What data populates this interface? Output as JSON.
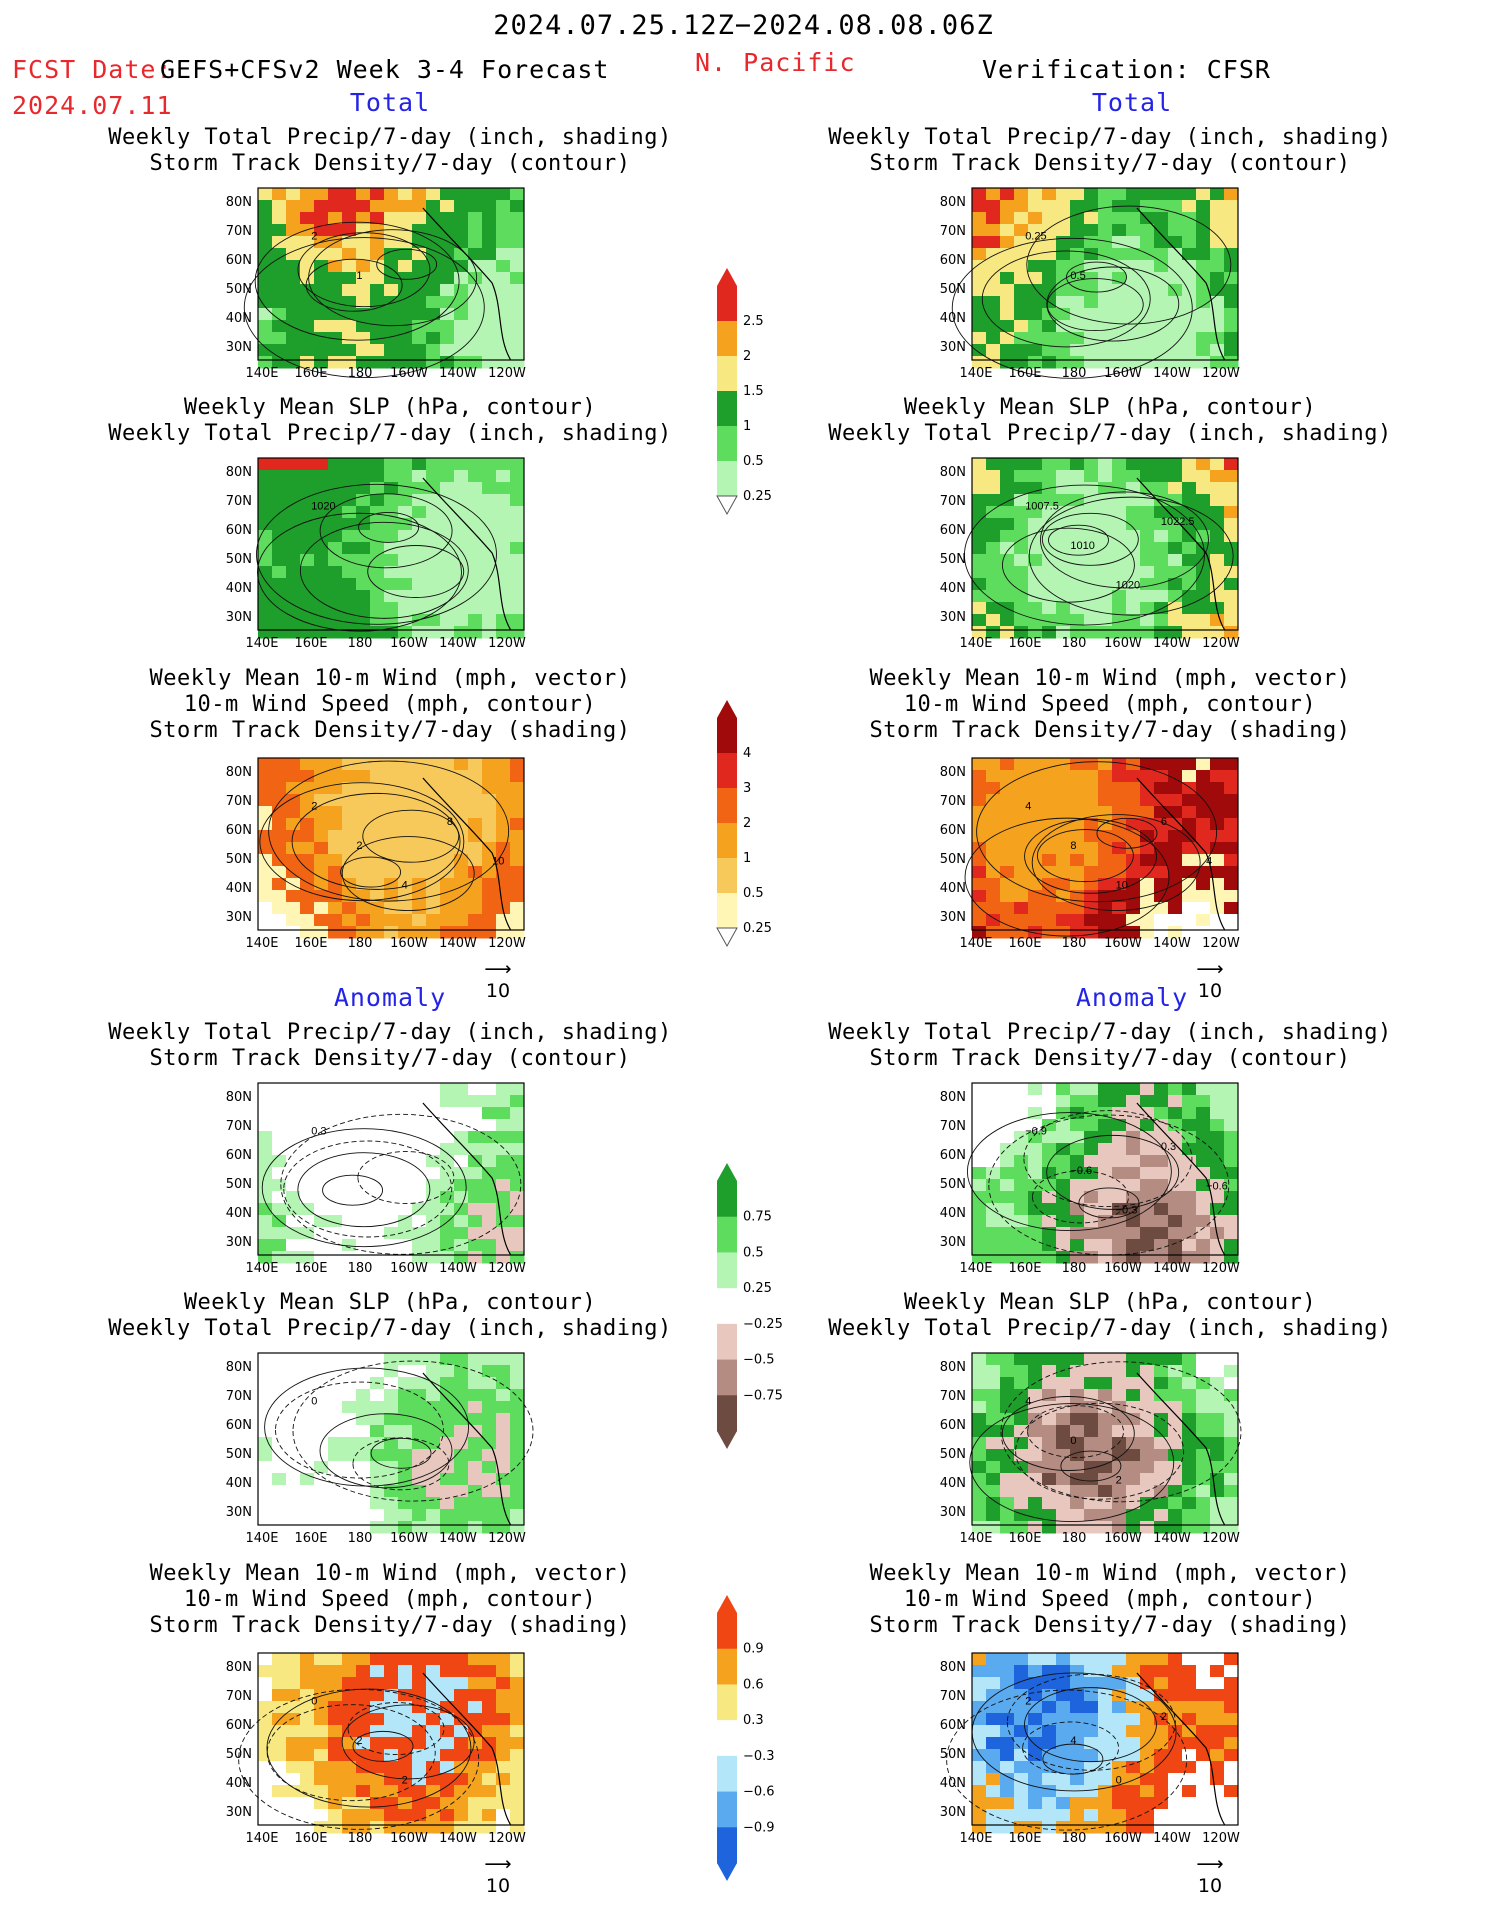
{
  "header": {
    "period": "2024.07.25.12Z−2024.08.08.06Z",
    "fcst_label": "FCST Date:",
    "model": "GEFS+CFSv2 Week 3-4 Forecast",
    "fcst_date": "2024.07.11",
    "region": "N. Pacific",
    "verification": "Verification: CFSR"
  },
  "sections": {
    "total": "Total",
    "anomaly": "Anomaly"
  },
  "titles": {
    "precip_storm_1": "Weekly Total Precip/7-day (inch, shading)",
    "precip_storm_2": "Storm Track Density/7-day (contour)",
    "slp_1": "Weekly Mean SLP (hPa, contour)",
    "slp_2": "Weekly Total Precip/7-day (inch, shading)",
    "wind_1": "Weekly Mean 10-m Wind (mph, vector)",
    "wind_2": "10-m Wind Speed (mph, contour)",
    "wind_3": "Storm Track Density/7-day (shading)"
  },
  "axes": {
    "lat": [
      "80N",
      "70N",
      "60N",
      "50N",
      "40N",
      "30N"
    ],
    "lon": [
      "140E",
      "160E",
      "180",
      "160W",
      "140W",
      "120W"
    ]
  },
  "vector_ref": "10",
  "colorbars": {
    "precip_total": {
      "labels": [
        "2.5",
        "2",
        "1.5",
        "1",
        "0.5",
        "0.25"
      ],
      "colors": [
        "#e0281e",
        "#f5a21e",
        "#f7e882",
        "#1e9e2a",
        "#5ddc5d",
        "#b4f5b4"
      ]
    },
    "storm_total": {
      "labels": [
        "4",
        "3",
        "2",
        "1",
        "0.5",
        "0.25"
      ],
      "colors": [
        "#a00a0a",
        "#e0281e",
        "#f06414",
        "#f5a21e",
        "#f7c85a",
        "#fff5b4"
      ]
    },
    "precip_anom": {
      "labels": [
        "0.75",
        "0.5",
        "0.25",
        "−0.25",
        "−0.5",
        "−0.75"
      ],
      "colors": [
        "#1e9e2a",
        "#5ddc5d",
        "#b4f5b4",
        "#ffffff",
        "#e8c8be",
        "#b48c82",
        "#6e4b41"
      ]
    },
    "storm_anom": {
      "labels": [
        "0.9",
        "0.6",
        "0.3",
        "−0.3",
        "−0.6",
        "−0.9"
      ],
      "colors": [
        "#f04614",
        "#f5a21e",
        "#f7e882",
        "#ffffff",
        "#b4e6fa",
        "#5aaaf0",
        "#1e64dc"
      ]
    }
  },
  "maps": {
    "l1": {
      "palette": [
        "#b4f5b4",
        "#5ddc5d",
        "#1e9e2a",
        "#1e9e2a",
        "#f7e882",
        "#f5a21e",
        "#e0281e"
      ],
      "labels": [
        "2",
        "1"
      ]
    },
    "r1": {
      "palette": [
        "#b4f5b4",
        "#5ddc5d",
        "#1e9e2a",
        "#f7e882",
        "#f5a21e",
        "#e0281e"
      ],
      "labels": [
        "0.25",
        "0.5"
      ]
    },
    "l2": {
      "palette": [
        "#b4f5b4",
        "#5ddc5d",
        "#1e9e2a",
        "#1e9e2a",
        "#e0281e"
      ],
      "labels": [
        "1020"
      ]
    },
    "r2": {
      "palette": [
        "#b4f5b4",
        "#5ddc5d",
        "#1e9e2a",
        "#f7e882",
        "#f5a21e",
        "#e0281e"
      ],
      "labels": [
        "1007.5",
        "1010",
        "1020",
        "1022.5"
      ]
    },
    "l3": {
      "palette": [
        "#f7c85a",
        "#f5a21e",
        "#f06414",
        "#fff5b4",
        "#ffffff"
      ],
      "labels": [
        "2",
        "2",
        "4",
        "8",
        "10"
      ]
    },
    "r3": {
      "palette": [
        "#f5a21e",
        "#f06414",
        "#e0281e",
        "#a00a0a",
        "#fff5b4",
        "#ffffff"
      ],
      "labels": [
        "4",
        "8",
        "10",
        "6",
        "4"
      ]
    },
    "l4": {
      "palette": [
        "#ffffff",
        "#ffffff",
        "#b4f5b4",
        "#5ddc5d",
        "#e8c8be"
      ],
      "labels": [
        "0.3"
      ]
    },
    "r4": {
      "palette": [
        "#ffffff",
        "#b4f5b4",
        "#5ddc5d",
        "#1e9e2a",
        "#e8c8be",
        "#b48c82",
        "#6e4b41"
      ],
      "labels": [
        "−0.9",
        "−0.6",
        "−0.3",
        "0.3",
        "−0.6"
      ]
    },
    "l5": {
      "palette": [
        "#ffffff",
        "#ffffff",
        "#b4f5b4",
        "#5ddc5d",
        "#e8c8be"
      ],
      "labels": [
        "0"
      ]
    },
    "r5": {
      "palette": [
        "#ffffff",
        "#b4f5b4",
        "#5ddc5d",
        "#1e9e2a",
        "#e8c8be",
        "#b48c82",
        "#6e4b41"
      ],
      "labels": [
        "4",
        "0",
        "2"
      ]
    },
    "l6": {
      "palette": [
        "#ffffff",
        "#f7e882",
        "#f5a21e",
        "#f04614",
        "#b4e6fa"
      ],
      "labels": [
        "0",
        "2",
        "2"
      ]
    },
    "r6": {
      "palette": [
        "#ffffff",
        "#f04614",
        "#f5a21e",
        "#b4e6fa",
        "#5aaaf0",
        "#1e64dc"
      ],
      "labels": [
        "2",
        "4",
        "0",
        "2"
      ]
    }
  }
}
